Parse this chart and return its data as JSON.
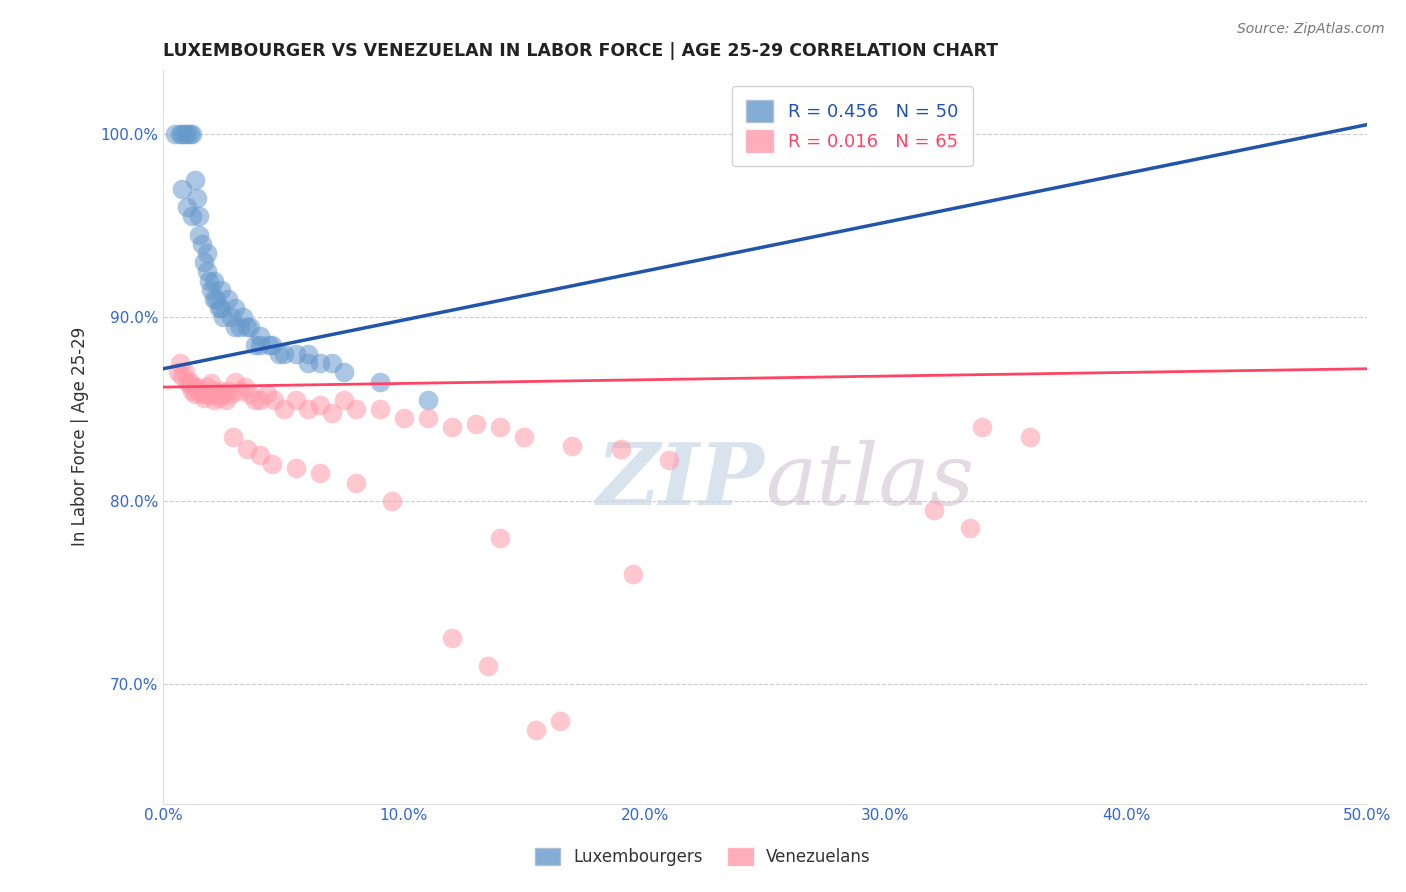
{
  "title": "LUXEMBOURGER VS VENEZUELAN IN LABOR FORCE | AGE 25-29 CORRELATION CHART",
  "source": "Source: ZipAtlas.com",
  "ylabel": "In Labor Force | Age 25-29",
  "xlim": [
    0.0,
    0.5
  ],
  "ylim": [
    0.635,
    1.035
  ],
  "xticks": [
    0.0,
    0.1,
    0.2,
    0.3,
    0.4,
    0.5
  ],
  "xticklabels": [
    "0.0%",
    "10.0%",
    "20.0%",
    "30.0%",
    "40.0%",
    "50.0%"
  ],
  "yticks": [
    0.7,
    0.8,
    0.9,
    1.0
  ],
  "yticklabels": [
    "70.0%",
    "80.0%",
    "90.0%",
    "100.0%"
  ],
  "blue_color": "#6699CC",
  "pink_color": "#FF99AA",
  "blue_line_color": "#2255AA",
  "pink_line_color": "#FF4466",
  "R_blue": 0.456,
  "N_blue": 50,
  "R_pink": 0.016,
  "N_pink": 65,
  "blue_line_x": [
    0.0,
    0.5
  ],
  "blue_line_y": [
    0.872,
    1.005
  ],
  "pink_line_x": [
    0.0,
    0.5
  ],
  "pink_line_y": [
    0.862,
    0.872
  ],
  "blue_x": [
    0.005,
    0.007,
    0.008,
    0.009,
    0.01,
    0.011,
    0.012,
    0.013,
    0.014,
    0.015,
    0.016,
    0.017,
    0.018,
    0.019,
    0.02,
    0.021,
    0.022,
    0.023,
    0.024,
    0.025,
    0.028,
    0.03,
    0.032,
    0.035,
    0.038,
    0.04,
    0.044,
    0.048,
    0.055,
    0.06,
    0.065,
    0.07,
    0.008,
    0.01,
    0.012,
    0.015,
    0.018,
    0.021,
    0.024,
    0.027,
    0.03,
    0.033,
    0.036,
    0.04,
    0.045,
    0.05,
    0.06,
    0.075,
    0.09,
    0.11
  ],
  "blue_y": [
    1.0,
    1.0,
    1.0,
    1.0,
    1.0,
    1.0,
    1.0,
    0.975,
    0.965,
    0.955,
    0.94,
    0.93,
    0.925,
    0.92,
    0.915,
    0.91,
    0.91,
    0.905,
    0.905,
    0.9,
    0.9,
    0.895,
    0.895,
    0.895,
    0.885,
    0.885,
    0.885,
    0.88,
    0.88,
    0.88,
    0.875,
    0.875,
    0.97,
    0.96,
    0.955,
    0.945,
    0.935,
    0.92,
    0.915,
    0.91,
    0.905,
    0.9,
    0.895,
    0.89,
    0.885,
    0.88,
    0.875,
    0.87,
    0.865,
    0.855
  ],
  "pink_x": [
    0.006,
    0.008,
    0.01,
    0.011,
    0.012,
    0.013,
    0.014,
    0.015,
    0.016,
    0.017,
    0.018,
    0.019,
    0.02,
    0.021,
    0.022,
    0.023,
    0.024,
    0.025,
    0.026,
    0.027,
    0.028,
    0.03,
    0.032,
    0.034,
    0.036,
    0.038,
    0.04,
    0.043,
    0.046,
    0.05,
    0.055,
    0.06,
    0.065,
    0.07,
    0.075,
    0.08,
    0.09,
    0.1,
    0.11,
    0.12,
    0.13,
    0.14,
    0.15,
    0.17,
    0.19,
    0.21,
    0.34,
    0.36,
    0.007,
    0.009,
    0.011,
    0.013,
    0.015,
    0.018,
    0.021,
    0.029,
    0.035,
    0.04,
    0.045,
    0.055,
    0.065,
    0.08,
    0.095,
    0.14,
    0.195
  ],
  "pink_y": [
    0.87,
    0.868,
    0.865,
    0.863,
    0.86,
    0.858,
    0.862,
    0.86,
    0.858,
    0.856,
    0.862,
    0.858,
    0.864,
    0.86,
    0.858,
    0.856,
    0.86,
    0.858,
    0.855,
    0.86,
    0.858,
    0.865,
    0.86,
    0.862,
    0.858,
    0.855,
    0.855,
    0.858,
    0.855,
    0.85,
    0.855,
    0.85,
    0.852,
    0.848,
    0.855,
    0.85,
    0.85,
    0.845,
    0.845,
    0.84,
    0.842,
    0.84,
    0.835,
    0.83,
    0.828,
    0.822,
    0.84,
    0.835,
    0.875,
    0.87,
    0.865,
    0.862,
    0.86,
    0.858,
    0.855,
    0.835,
    0.828,
    0.825,
    0.82,
    0.818,
    0.815,
    0.81,
    0.8,
    0.78,
    0.76
  ],
  "pink_outliers_x": [
    0.12,
    0.135,
    0.32,
    0.335,
    0.155,
    0.165
  ],
  "pink_outliers_y": [
    0.725,
    0.71,
    0.795,
    0.785,
    0.675,
    0.68
  ]
}
